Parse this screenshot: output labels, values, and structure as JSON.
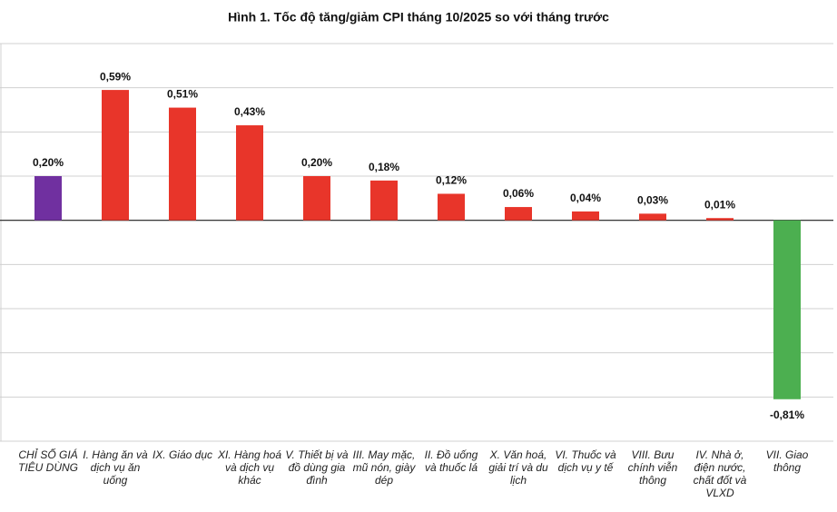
{
  "chart_data": {
    "type": "bar",
    "title": "Hình 1. Tốc độ tăng/giảm CPI tháng 10/2025 so với tháng trước",
    "categories": [
      "CHỈ SỐ GIÁ TIÊU DÙNG",
      "I. Hàng ăn và dịch vụ ăn uống",
      "IX. Giáo dục",
      "XI. Hàng hoá và dịch vụ khác",
      "V. Thiết bị và đồ dùng gia đình",
      "III. May mặc, mũ nón, giày dép",
      "II. Đồ uống và thuốc lá",
      "X. Văn hoá, giải trí và du lịch",
      "VI. Thuốc và dịch vụ y tế",
      "VIII. Bưu chính viễn thông",
      "IV. Nhà ở, điện nước, chất đốt và VLXD",
      "VII. Giao thông"
    ],
    "values": [
      0.2,
      0.59,
      0.51,
      0.43,
      0.2,
      0.18,
      0.12,
      0.06,
      0.04,
      0.03,
      0.01,
      -0.81
    ],
    "value_labels": [
      "0,20%",
      "0,59%",
      "0,51%",
      "0,43%",
      "0,20%",
      "0,18%",
      "0,12%",
      "0,06%",
      "0,04%",
      "0,03%",
      "0,01%",
      "-0,81%"
    ],
    "colors": [
      "#7030a0",
      "#e8352a",
      "#e8352a",
      "#e8352a",
      "#e8352a",
      "#e8352a",
      "#e8352a",
      "#e8352a",
      "#e8352a",
      "#e8352a",
      "#e8352a",
      "#4caf50"
    ],
    "ylim": [
      -1.0,
      0.8
    ],
    "yticks": [
      -1.0,
      -0.8,
      -0.6,
      -0.4,
      -0.2,
      0,
      0.2,
      0.4,
      0.6,
      0.8
    ],
    "grid": true
  }
}
